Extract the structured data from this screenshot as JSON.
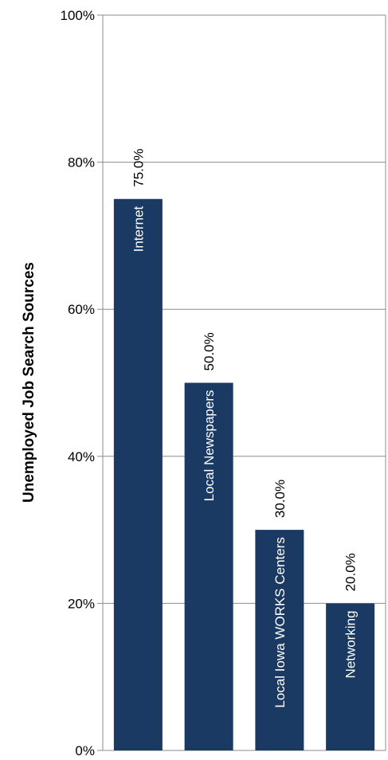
{
  "chart_data": {
    "type": "bar",
    "orientation": "vertical",
    "categories": [
      "Internet",
      "Local Newspapers",
      "Local Iowa WORKS Centers",
      "Networking"
    ],
    "values": [
      75.0,
      50.0,
      30.0,
      20.0
    ],
    "data_labels": [
      "75.0%",
      "50.0%",
      "30.0%",
      "20.0%"
    ],
    "ylabel": "Unemployed Job Search Sources",
    "xlabel": "",
    "title": "",
    "ylim": [
      0,
      100
    ],
    "yticks": [
      0,
      20,
      40,
      60,
      80,
      100
    ],
    "ytick_labels": [
      "0%",
      "20%",
      "40%",
      "60%",
      "80%",
      "100%"
    ],
    "grid": true,
    "legend": "none",
    "bar_color": "#1a3a63",
    "category_label_placement": "inside bar, rotated vertical, white text",
    "data_label_placement": "above bar, rotated vertical"
  }
}
